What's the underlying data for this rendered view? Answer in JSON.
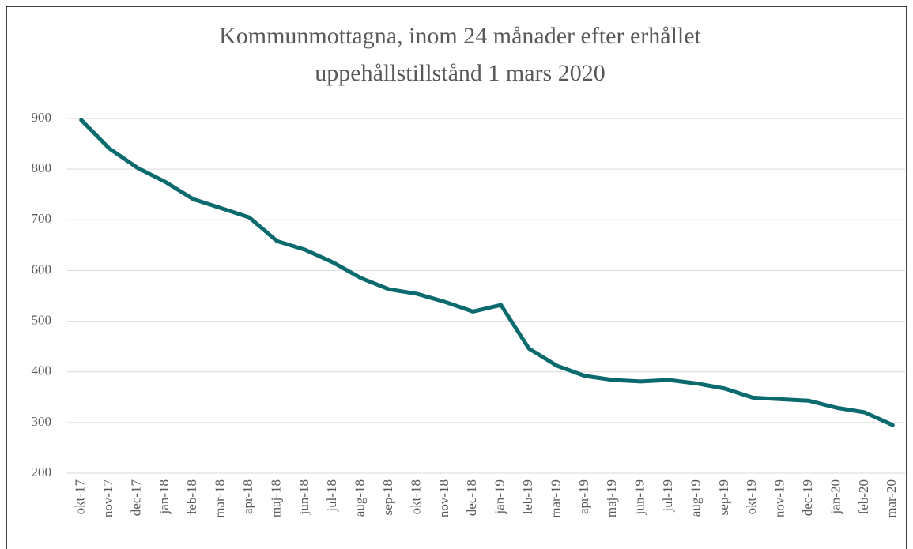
{
  "chart_data": {
    "type": "line",
    "title": [
      "Kommunmottagna, inom 24 månader efter erhållet",
      "uppehållstillstånd 1 mars 2020"
    ],
    "categories": [
      "okt-17",
      "nov-17",
      "dec-17",
      "jan-18",
      "feb-18",
      "mar-18",
      "apr-18",
      "maj-18",
      "jun-18",
      "jul-18",
      "aug-18",
      "sep-18",
      "okt-18",
      "nov-18",
      "dec-18",
      "jan-19",
      "feb-19",
      "mar-19",
      "apr-19",
      "maj-19",
      "jun-19",
      "jul-19",
      "aug-19",
      "sep-19",
      "okt-19",
      "nov-19",
      "dec-19",
      "jan-20",
      "feb-20",
      "mar-20"
    ],
    "values": [
      897,
      841,
      803,
      775,
      741,
      723,
      705,
      658,
      641,
      616,
      585,
      563,
      554,
      538,
      519,
      532,
      446,
      412,
      392,
      384,
      381,
      384,
      377,
      367,
      349,
      346,
      343,
      329,
      320,
      295
    ],
    "color": "#0b6a6e",
    "ylim": [
      200,
      900
    ],
    "yticks": [
      200,
      300,
      400,
      500,
      600,
      700,
      800,
      900
    ],
    "grid": true
  }
}
